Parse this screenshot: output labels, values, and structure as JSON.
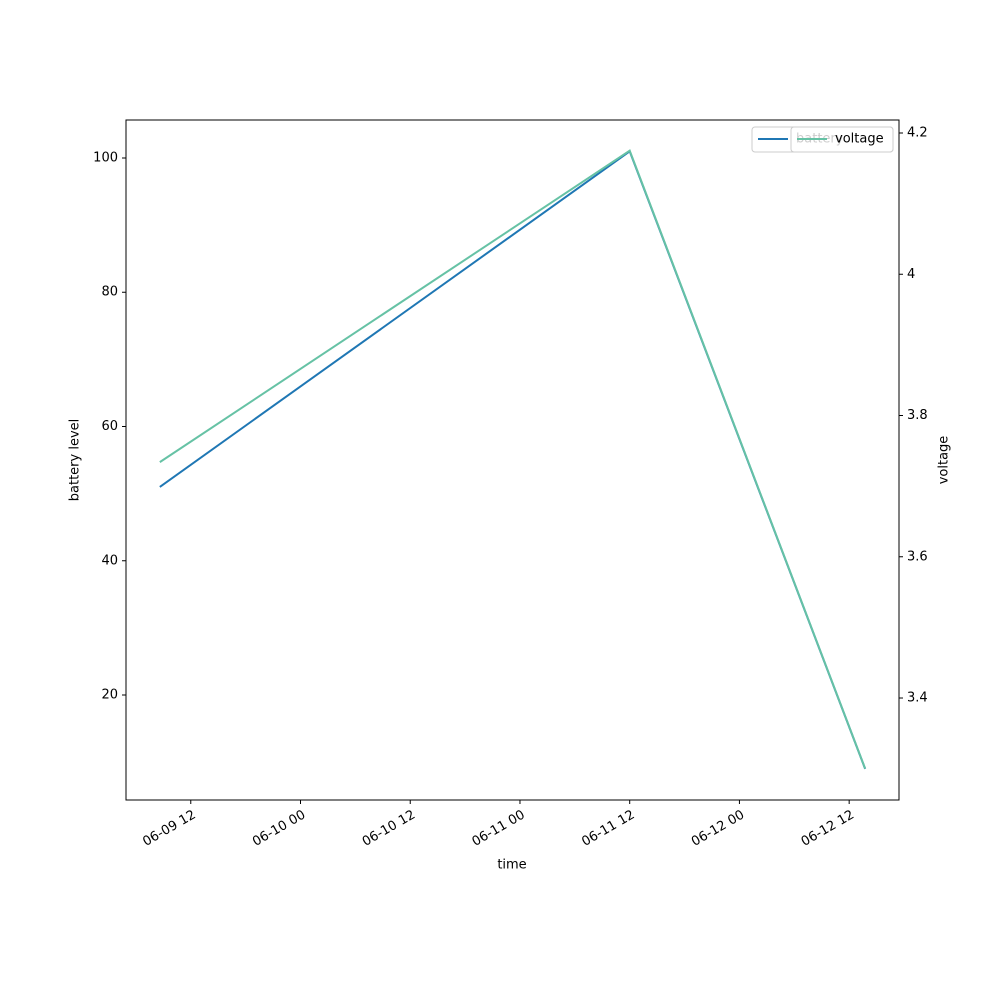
{
  "chart_data": {
    "type": "line",
    "x": [
      "06-09 08:37",
      "06-11 12:00",
      "06-12 13:45"
    ],
    "xlim": [
      "06-09 04:55",
      "06-12 17:27"
    ],
    "xticks": [
      "06-09 12",
      "06-10 00",
      "06-10 12",
      "06-11 00",
      "06-11 12",
      "06-12 00",
      "06-12 12"
    ],
    "xlabel": "time",
    "ylabel": "battery level",
    "y2label": "voltage",
    "ylim": [
      4.36,
      105.66
    ],
    "yticks": [
      20,
      40,
      60,
      80,
      100
    ],
    "y2lim": [
      3.2556,
      4.2184
    ],
    "y2ticks": [
      3.4,
      3.6,
      3.8,
      4.0,
      4.2
    ],
    "series": [
      {
        "name": "battery",
        "color": "#1f77b4",
        "values": [
          51,
          101,
          9
        ]
      },
      {
        "name": "voltage",
        "color": "#66c2a5",
        "axis": "y2",
        "values": [
          3.734,
          4.175,
          3.3
        ]
      }
    ],
    "legend": "upper right"
  }
}
